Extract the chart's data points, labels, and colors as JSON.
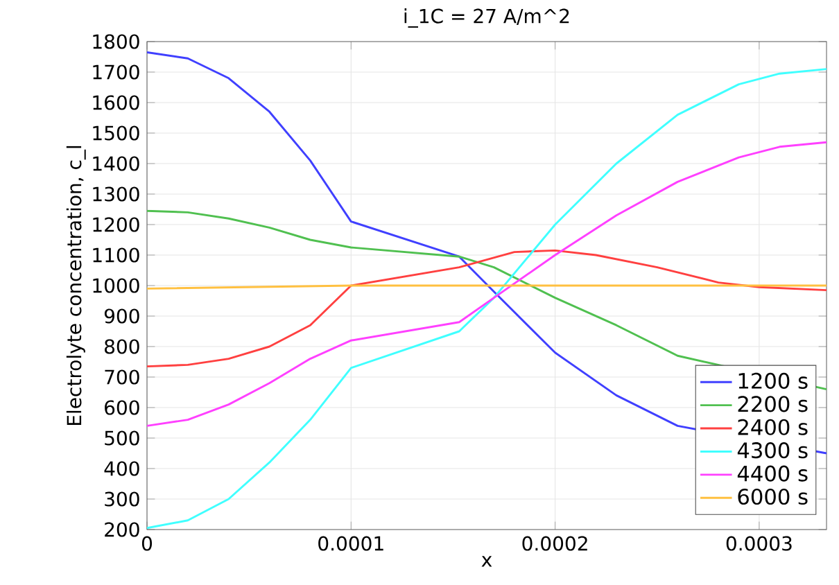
{
  "chart_data": {
    "type": "line",
    "title": "i_1C = 27 A/m^2",
    "xlabel": "x",
    "ylabel": "Electrolyte concentration, c_l",
    "xlim": [
      0,
      0.000333
    ],
    "ylim": [
      200,
      1800
    ],
    "xticks": [
      0,
      0.0001,
      0.0002,
      0.0003
    ],
    "yticks": [
      200,
      300,
      400,
      500,
      600,
      700,
      800,
      900,
      1000,
      1100,
      1200,
      1300,
      1400,
      1500,
      1600,
      1700,
      1800
    ],
    "grid": true,
    "legend": "bottom right",
    "line_style": "solid",
    "series": [
      {
        "name": "1200 s",
        "color": "#4040ff",
        "x": [
          0,
          2e-05,
          4e-05,
          6e-05,
          8e-05,
          0.0001,
          0.000153,
          0.00017,
          0.0002,
          0.00023,
          0.00026,
          0.000333
        ],
        "values": [
          1765,
          1745,
          1680,
          1570,
          1410,
          1210,
          1095,
          980,
          780,
          640,
          540,
          450
        ]
      },
      {
        "name": "2200 s",
        "color": "#50c050",
        "x": [
          0,
          2e-05,
          4e-05,
          6e-05,
          8e-05,
          0.0001,
          0.000153,
          0.00017,
          0.0002,
          0.00023,
          0.00026,
          0.000333
        ],
        "values": [
          1245,
          1240,
          1220,
          1190,
          1150,
          1125,
          1095,
          1060,
          960,
          870,
          770,
          660
        ]
      },
      {
        "name": "2400 s",
        "color": "#ff4040",
        "x": [
          0,
          2e-05,
          4e-05,
          6e-05,
          8e-05,
          0.0001,
          0.000153,
          0.00018,
          0.0002,
          0.00022,
          0.00025,
          0.00028,
          0.0003,
          0.000333
        ],
        "values": [
          735,
          740,
          760,
          800,
          870,
          1000,
          1060,
          1110,
          1115,
          1100,
          1060,
          1010,
          995,
          985
        ]
      },
      {
        "name": "4300 s",
        "color": "#40ffff",
        "x": [
          0,
          2e-05,
          4e-05,
          6e-05,
          8e-05,
          0.0001,
          0.000153,
          0.00017,
          0.0002,
          0.00023,
          0.00026,
          0.00029,
          0.00031,
          0.000333
        ],
        "values": [
          205,
          230,
          300,
          420,
          560,
          730,
          850,
          960,
          1200,
          1400,
          1560,
          1660,
          1695,
          1710
        ]
      },
      {
        "name": "4400 s",
        "color": "#ff40ff",
        "x": [
          0,
          2e-05,
          4e-05,
          6e-05,
          8e-05,
          0.0001,
          0.000153,
          0.00017,
          0.0002,
          0.00023,
          0.00026,
          0.00029,
          0.00031,
          0.000333
        ],
        "values": [
          540,
          560,
          610,
          680,
          760,
          820,
          880,
          960,
          1100,
          1230,
          1340,
          1420,
          1455,
          1470
        ]
      },
      {
        "name": "6000 s",
        "color": "#ffc040",
        "x": [
          0,
          0.0001,
          0.000333
        ],
        "values": [
          990,
          1000,
          1000
        ]
      }
    ]
  }
}
